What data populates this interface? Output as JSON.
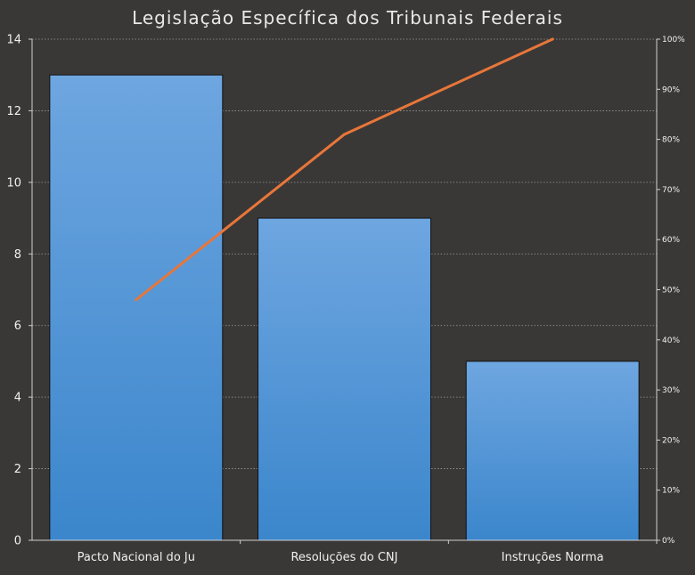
{
  "chart_data": {
    "type": "bar",
    "title": "Legislação Específica dos Tribunais Federais",
    "categories": [
      "Pacto Nacional do Ju",
      "Resoluções do CNJ",
      "Instruções Norma"
    ],
    "series": [
      {
        "type": "bar",
        "values": [
          13,
          9,
          5
        ]
      },
      {
        "type": "line",
        "axis": "right",
        "values": [
          48,
          81,
          100
        ]
      }
    ],
    "y_left": {
      "min": 0,
      "max": 14,
      "step": 2,
      "ticks": [
        "0",
        "2",
        "4",
        "6",
        "8",
        "10",
        "12",
        "14"
      ]
    },
    "y_right": {
      "min": 0,
      "max": 100,
      "step": 10,
      "ticks": [
        "0%",
        "10%",
        "20%",
        "30%",
        "40%",
        "50%",
        "60%",
        "70%",
        "80%",
        "90%",
        "100%"
      ]
    },
    "grid": "horizontal-dotted",
    "legend": "none"
  },
  "colors": {
    "background": "#3a3836",
    "bar_top": "#6ea6e0",
    "bar_bottom": "#3b86cc",
    "line": "#e8763a",
    "grid": "#9a9a9a",
    "text": "#f0f0f0"
  }
}
